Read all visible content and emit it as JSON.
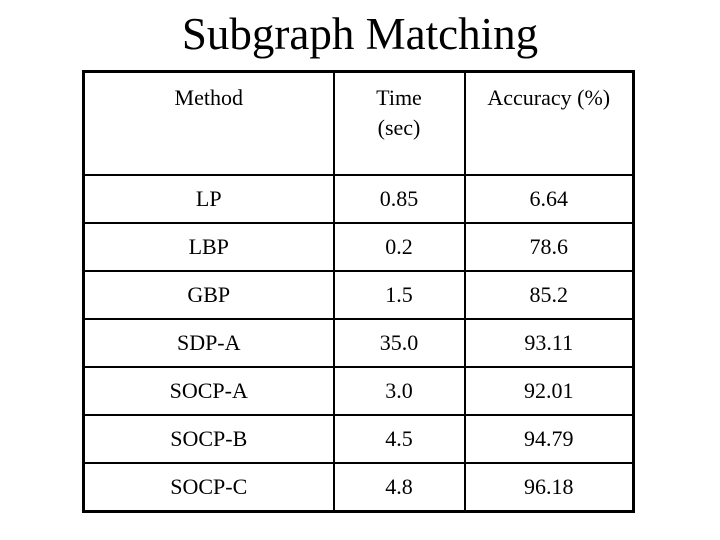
{
  "title": "Subgraph Matching",
  "table": {
    "columns": [
      "Method",
      "Time\n(sec)",
      "Accuracy (%)"
    ],
    "rows": [
      {
        "method": "LP",
        "time": "0.85",
        "accuracy": "6.64"
      },
      {
        "method": "LBP",
        "time": "0.2",
        "accuracy": "78.6"
      },
      {
        "method": "GBP",
        "time": "1.5",
        "accuracy": "85.2"
      },
      {
        "method": "SDP-A",
        "time": "35.0",
        "accuracy": "93.11"
      },
      {
        "method": "SOCP-A",
        "time": "3.0",
        "accuracy": "92.01"
      },
      {
        "method": "SOCP-B",
        "time": "4.5",
        "accuracy": "94.79"
      },
      {
        "method": "SOCP-C",
        "time": "4.8",
        "accuracy": "96.18"
      }
    ]
  }
}
